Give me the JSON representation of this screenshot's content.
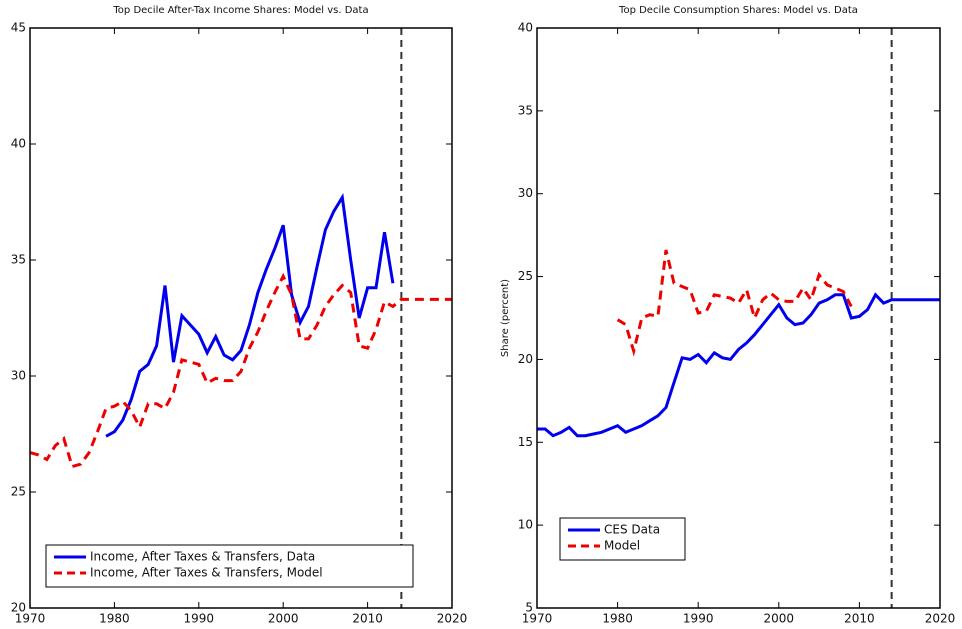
{
  "chart_data": [
    {
      "type": "line",
      "title": "Top Decile After-Tax Income Shares: Model vs. Data",
      "x": [
        1970,
        1971,
        1972,
        1973,
        1974,
        1975,
        1976,
        1977,
        1978,
        1979,
        1980,
        1981,
        1982,
        1983,
        1984,
        1985,
        1986,
        1987,
        1988,
        1989,
        1990,
        1991,
        1992,
        1993,
        1994,
        1995,
        1996,
        1997,
        1998,
        1999,
        2000,
        2001,
        2002,
        2003,
        2004,
        2005,
        2006,
        2007,
        2008,
        2009,
        2010,
        2011,
        2012,
        2013,
        2014,
        2015,
        2016,
        2017,
        2018,
        2019,
        2020
      ],
      "series": [
        {
          "name": "Income, After Taxes & Transfers, Data",
          "color": "#0000ee",
          "dash": false,
          "values": [
            null,
            null,
            null,
            null,
            null,
            null,
            null,
            null,
            null,
            27.4,
            27.6,
            28.1,
            29.0,
            30.2,
            30.5,
            31.3,
            33.9,
            30.6,
            32.6,
            32.2,
            31.8,
            31.0,
            31.7,
            30.9,
            30.7,
            31.1,
            32.2,
            33.6,
            34.6,
            35.5,
            36.5,
            33.5,
            32.3,
            33.0,
            34.7,
            36.3,
            37.1,
            37.7,
            35.0,
            32.5,
            33.8,
            33.8,
            36.2,
            34.0,
            null,
            null,
            null,
            null,
            null,
            null,
            null
          ]
        },
        {
          "name": "Income, After Taxes & Transfers, Model",
          "color": "#ee0000",
          "dash": true,
          "values": [
            26.7,
            26.6,
            26.4,
            27.0,
            27.3,
            26.1,
            26.2,
            26.7,
            27.6,
            28.6,
            28.7,
            28.9,
            28.5,
            27.8,
            28.8,
            28.8,
            28.6,
            29.3,
            30.7,
            30.6,
            30.5,
            29.7,
            29.9,
            29.8,
            29.8,
            30.2,
            31.2,
            31.9,
            32.8,
            33.6,
            34.3,
            33.5,
            31.6,
            31.6,
            32.2,
            33.0,
            33.5,
            33.9,
            33.6,
            31.3,
            31.2,
            32.0,
            33.2,
            33.0,
            33.3,
            33.3,
            33.3,
            33.3,
            33.3,
            33.3,
            33.3
          ]
        }
      ],
      "xlim": [
        1970,
        2020
      ],
      "xticks": [
        1970,
        1980,
        1990,
        2000,
        2010,
        2020
      ],
      "ylim": [
        20,
        45
      ],
      "yticks": [
        20,
        25,
        30,
        35,
        40,
        45
      ],
      "vlines": [
        2014
      ],
      "legend": "lower-left"
    },
    {
      "type": "line",
      "title": "Top Decile Consumption Shares: Model vs. Data",
      "ylabel": "Share (percent)",
      "x": [
        1970,
        1971,
        1972,
        1973,
        1974,
        1975,
        1976,
        1977,
        1978,
        1979,
        1980,
        1981,
        1982,
        1983,
        1984,
        1985,
        1986,
        1987,
        1988,
        1989,
        1990,
        1991,
        1992,
        1993,
        1994,
        1995,
        1996,
        1997,
        1998,
        1999,
        2000,
        2001,
        2002,
        2003,
        2004,
        2005,
        2006,
        2007,
        2008,
        2009,
        2010,
        2011,
        2012,
        2013,
        2014,
        2015,
        2016,
        2017,
        2018,
        2019,
        2020
      ],
      "series": [
        {
          "name": "CES Data",
          "color": "#0000ee",
          "dash": false,
          "values": [
            15.8,
            15.8,
            15.4,
            15.6,
            15.9,
            15.4,
            15.4,
            15.5,
            15.6,
            15.8,
            16.0,
            15.6,
            15.8,
            16.0,
            16.3,
            16.6,
            17.1,
            18.6,
            20.1,
            20.0,
            20.3,
            19.8,
            20.4,
            20.1,
            20.0,
            20.6,
            21.0,
            21.5,
            22.1,
            22.7,
            23.3,
            22.5,
            22.1,
            22.2,
            22.7,
            23.4,
            23.6,
            23.9,
            23.9,
            22.5,
            22.6,
            23.0,
            23.9,
            23.4,
            23.6,
            23.6,
            23.6,
            23.6,
            23.6,
            23.6,
            23.6
          ]
        },
        {
          "name": "Model",
          "color": "#ee0000",
          "dash": true,
          "values": [
            null,
            null,
            null,
            null,
            null,
            null,
            null,
            null,
            null,
            null,
            22.4,
            22.1,
            20.5,
            22.5,
            22.7,
            22.6,
            26.6,
            24.6,
            24.4,
            24.2,
            22.8,
            22.9,
            23.9,
            23.8,
            23.7,
            23.4,
            24.2,
            22.5,
            23.6,
            24.0,
            23.6,
            23.5,
            23.5,
            24.3,
            23.6,
            25.1,
            24.5,
            24.3,
            24.1,
            23.2,
            null,
            null,
            null,
            null,
            null,
            null,
            null,
            null,
            null,
            null,
            null
          ]
        }
      ],
      "xlim": [
        1970,
        2020
      ],
      "xticks": [
        1970,
        1980,
        1990,
        2000,
        2010,
        2020
      ],
      "ylim": [
        5,
        40
      ],
      "yticks": [
        5,
        10,
        15,
        20,
        25,
        30,
        35,
        40
      ],
      "vlines": [
        2014
      ],
      "legend": "lower-left"
    }
  ]
}
